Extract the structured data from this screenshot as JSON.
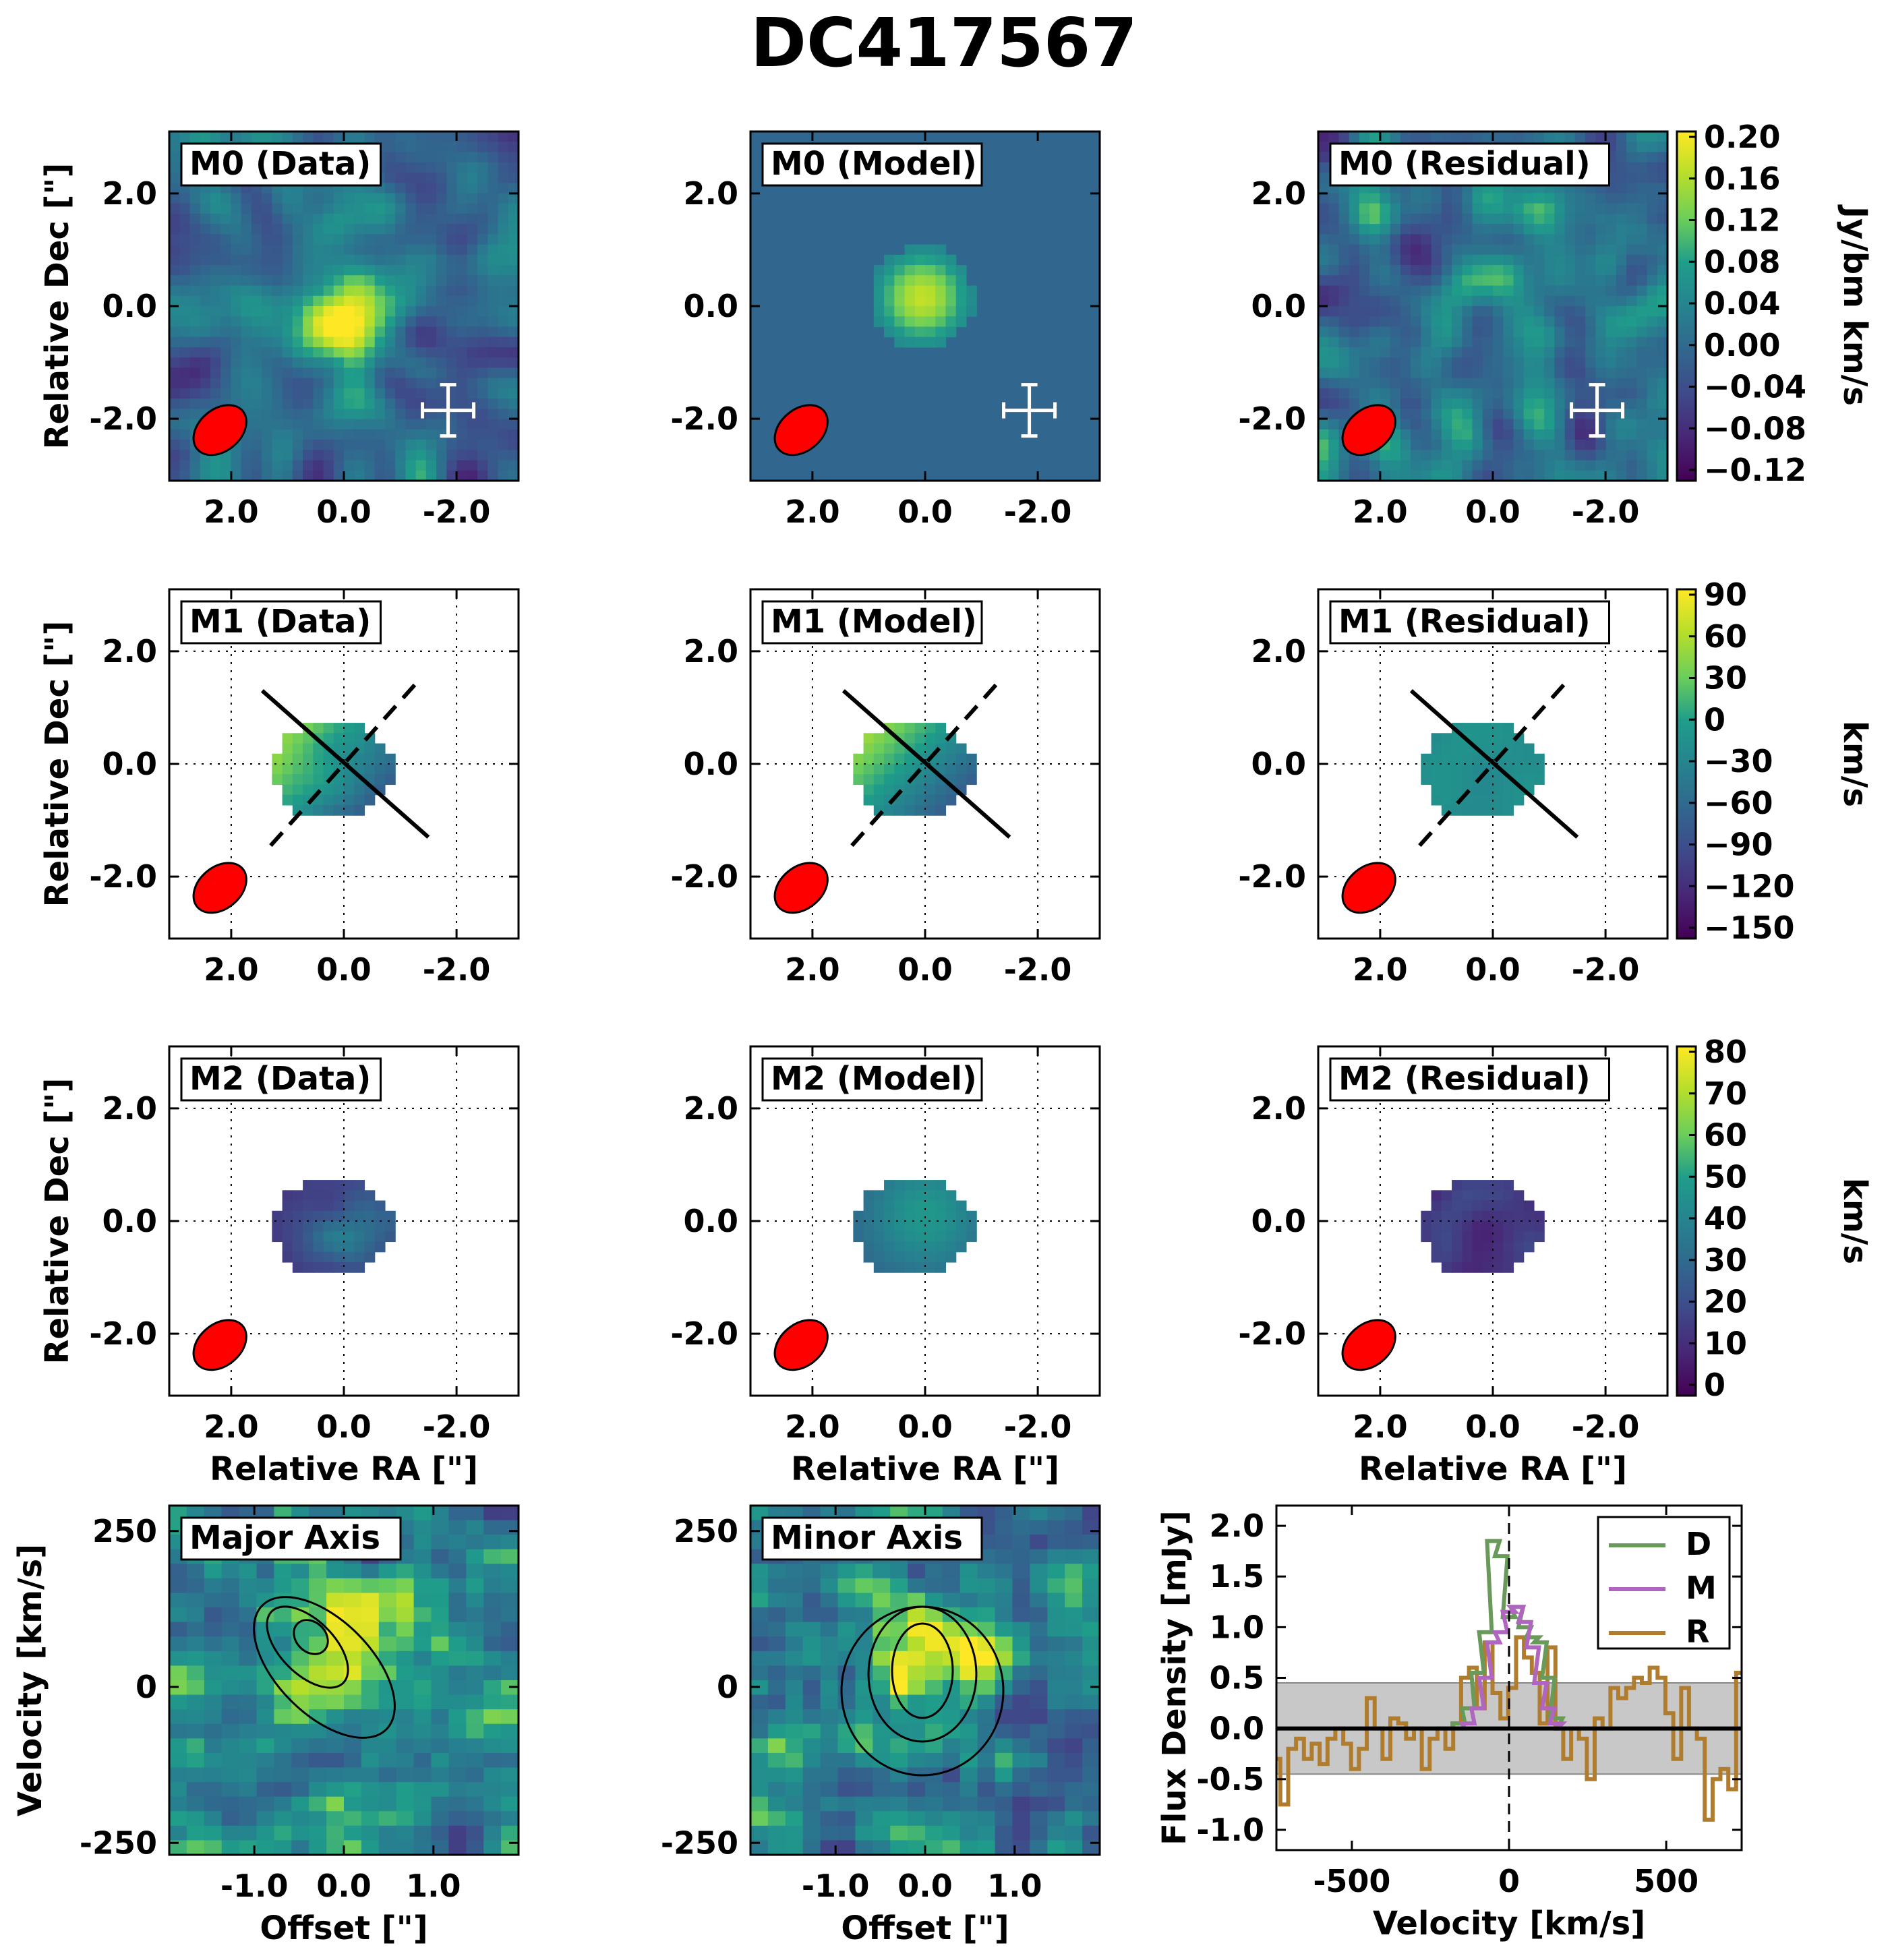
{
  "title": "DC417567",
  "colors": {
    "viridis": [
      "#440154",
      "#482777",
      "#3f4a8a",
      "#31678e",
      "#26838f",
      "#1f9d8a",
      "#6cce5a",
      "#b6de2b",
      "#fee825"
    ],
    "beam": "#ff0000",
    "model_bg": "#31678e",
    "data_line": "#6a9a5a",
    "model_line": "#b066c0",
    "residual_line": "#b07d2e",
    "noise_band": "#c8c8c8"
  },
  "labels": {
    "ra": "Relative RA [\"]",
    "dec": "Relative Dec [\"]",
    "offset": "Offset [\"]",
    "velocity": "Velocity [km/s]",
    "flux": "Flux Density [mJy]",
    "spec_velocity": "Velocity [km/s]"
  },
  "ticks": {
    "ra": [
      "2.0",
      "0.0",
      "-2.0"
    ],
    "dec": [
      "2.0",
      "0.0",
      "-2.0"
    ],
    "offset": [
      "-1.0",
      "0.0",
      "1.0"
    ],
    "velocity": [
      "250",
      "0",
      "-250"
    ],
    "spec_x": [
      "-500",
      "0",
      "500"
    ],
    "spec_y": [
      "2.0",
      "1.5",
      "1.0",
      "0.5",
      "0.0",
      "-0.5",
      "-1.0"
    ]
  },
  "panels": {
    "m0_data": "M0 (Data)",
    "m0_model": "M0 (Model)",
    "m0_resid": "M0 (Residual)",
    "m1_data": "M1 (Data)",
    "m1_model": "M1 (Model)",
    "m1_resid": "M1 (Residual)",
    "m2_data": "M2 (Data)",
    "m2_model": "M2 (Model)",
    "m2_resid": "M2 (Residual)",
    "major": "Major Axis",
    "minor": "Minor Axis"
  },
  "colorbars": {
    "m0": {
      "label": "Jy/bm km/s",
      "ticks": [
        "0.20",
        "0.16",
        "0.12",
        "0.08",
        "0.04",
        "0.00",
        "−0.04",
        "−0.08",
        "−0.12"
      ]
    },
    "m1": {
      "label": "km/s",
      "ticks": [
        "90",
        "60",
        "30",
        "0",
        "−30",
        "−60",
        "−90",
        "−120",
        "−150"
      ]
    },
    "m2": {
      "label": "km/s",
      "ticks": [
        "80",
        "70",
        "60",
        "50",
        "40",
        "30",
        "20",
        "10",
        "0"
      ]
    }
  },
  "legend": {
    "d": "D",
    "m": "M",
    "r": "R"
  },
  "chart_data": {
    "type": "line",
    "title": "DC417567",
    "xlabel": "Velocity [km/s]",
    "ylabel": "Flux Density [mJy]",
    "xlim": [
      -740,
      740
    ],
    "ylim": [
      -1.2,
      2.2
    ],
    "noise_band": [
      -0.45,
      0.45
    ],
    "vline": 0,
    "series": [
      {
        "name": "D",
        "x": [
          -200,
          -160,
          -130,
          -100,
          -75,
          -50,
          -25,
          0,
          25,
          50,
          75,
          100,
          125,
          150,
          175
        ],
        "values": [
          0.0,
          0.05,
          0.2,
          0.55,
          0.95,
          1.85,
          1.7,
          1.1,
          1.2,
          1.0,
          0.9,
          0.85,
          0.5,
          0.1,
          0.0
        ]
      },
      {
        "name": "M",
        "x": [
          -200,
          -160,
          -130,
          -100,
          -75,
          -50,
          -25,
          0,
          25,
          50,
          75,
          100,
          125,
          150,
          175
        ],
        "values": [
          0.0,
          0.0,
          0.05,
          0.2,
          0.5,
          0.85,
          0.95,
          1.15,
          1.2,
          1.05,
          0.8,
          0.45,
          0.2,
          0.05,
          0.0
        ]
      },
      {
        "name": "R",
        "x": [
          -740,
          -715,
          -690,
          -665,
          -640,
          -615,
          -590,
          -565,
          -540,
          -515,
          -490,
          -465,
          -440,
          -415,
          -390,
          -365,
          -340,
          -315,
          -290,
          -265,
          -240,
          -215,
          -190,
          -165,
          -140,
          -115,
          -90,
          -65,
          -40,
          -15,
          10,
          35,
          60,
          85,
          110,
          135,
          160,
          185,
          210,
          235,
          260,
          285,
          310,
          335,
          360,
          385,
          410,
          435,
          460,
          485,
          510,
          535,
          560,
          585,
          610,
          635,
          660,
          685,
          710,
          735
        ],
        "values": [
          -0.3,
          -0.75,
          -0.2,
          -0.1,
          -0.3,
          -0.15,
          -0.35,
          -0.1,
          0.0,
          -0.15,
          -0.4,
          -0.2,
          0.3,
          0.0,
          -0.3,
          0.1,
          0.05,
          -0.1,
          0.0,
          -0.4,
          -0.1,
          0.0,
          -0.2,
          0.05,
          0.5,
          0.6,
          0.2,
          0.85,
          0.35,
          0.1,
          0.4,
          0.9,
          0.7,
          0.55,
          0.05,
          0.8,
          0.0,
          -0.3,
          0.0,
          -0.1,
          -0.5,
          0.1,
          0.0,
          0.4,
          0.3,
          0.4,
          0.5,
          0.45,
          0.6,
          0.5,
          0.15,
          -0.3,
          0.4,
          0.0,
          -0.1,
          -0.9,
          -0.5,
          -0.4,
          -0.6,
          0.55
        ]
      }
    ],
    "pixel_maps": [
      {
        "panel": "M0 (Data)",
        "colorbar_range": [
          -0.12,
          0.2
        ],
        "units": "Jy/bm km/s"
      },
      {
        "panel": "M1 (Data)",
        "colorbar_range": [
          -150,
          90
        ],
        "units": "km/s"
      },
      {
        "panel": "M2 (Data)",
        "colorbar_range": [
          0,
          80
        ],
        "units": "km/s"
      }
    ]
  }
}
